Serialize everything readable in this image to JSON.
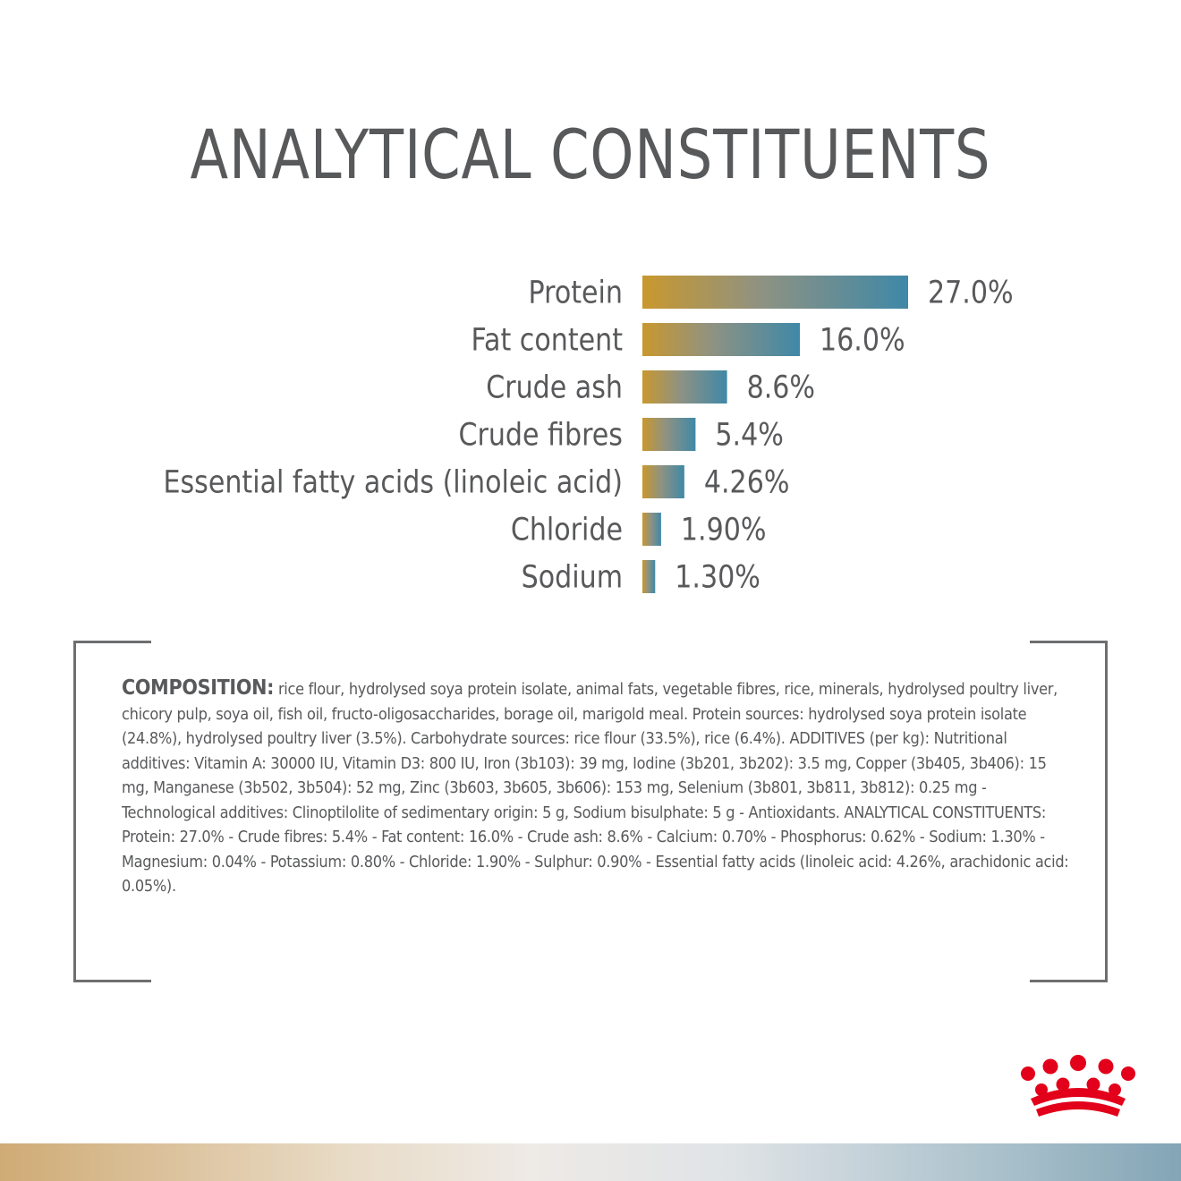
{
  "title": "ANALYTICAL CONSTITUENTS",
  "chart_data": {
    "type": "bar",
    "orientation": "horizontal",
    "categories": [
      "Protein",
      "Fat content",
      "Crude ash",
      "Crude fibres",
      "Essential fatty acids (linoleic acid)",
      "Chloride",
      "Sodium"
    ],
    "values": [
      27.0,
      16.0,
      8.6,
      5.4,
      4.26,
      1.9,
      1.3
    ],
    "value_labels": [
      "27.0%",
      "16.0%",
      "8.6%",
      "5.4%",
      "4.26%",
      "1.90%",
      "1.30%"
    ],
    "unit": "%",
    "title": "",
    "xlabel": "",
    "ylabel": "",
    "xlim": [
      0,
      27.0
    ],
    "grid": false,
    "legend": "none",
    "colors": {
      "bar_start": "#c9982e",
      "bar_mid": "#8e9283",
      "bar_end": "#3f88a7"
    }
  },
  "composition": {
    "label": "COMPOSITION:",
    "text": " rice flour, hydrolysed soya protein isolate, animal fats, vegetable fibres, rice, minerals, hydrolysed poultry liver, chicory pulp, soya oil, fish oil, fructo-oligosaccharides, borage oil, marigold meal. Protein sources: hydrolysed soya protein isolate (24.8%), hydrolysed poultry liver (3.5%). Carbohydrate sources: rice flour (33.5%), rice (6.4%). ADDITIVES (per kg): Nutritional additives: Vitamin A: 30000 IU, Vitamin D3: 800 IU, Iron (3b103): 39 mg, Iodine (3b201, 3b202): 3.5 mg, Copper (3b405, 3b406): 15 mg, Manganese (3b502, 3b504): 52 mg, Zinc (3b603, 3b605, 3b606): 153 mg, Selenium (3b801, 3b811, 3b812): 0.25 mg - Technological additives: Clinoptilolite of sedimentary origin: 5 g, Sodium bisulphate: 5 g - Antioxidants. ANALYTICAL CONSTITUENTS: Protein: 27.0% - Crude fibres: 5.4% - Fat content: 16.0% - Crude ash: 8.6% - Calcium: 0.70% - Phosphorus: 0.62% - Sodium: 1.30% - Magnesium: 0.04% - Potassium: 0.80% - Chloride: 1.90% - Sulphur: 0.90% - Essential fatty acids (linoleic acid: 4.26%, arachidonic acid: 0.05%)."
  },
  "logo": {
    "icon": "crown-logo-icon",
    "color": "#e2001a"
  }
}
